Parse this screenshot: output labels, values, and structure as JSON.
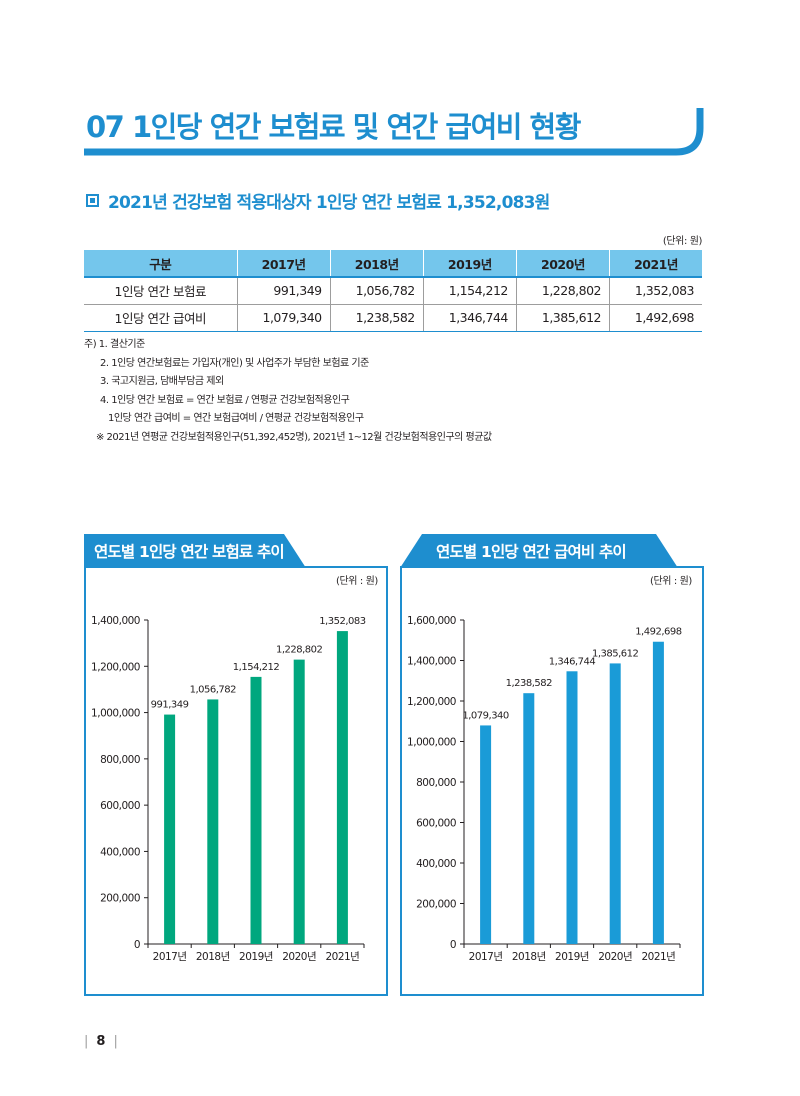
{
  "header": {
    "title": "07 1인당 연간 보험료 및 연간 급여비 현황",
    "accent_color": "#1e8ecf"
  },
  "section": {
    "icon": "square-bullet-icon",
    "title": "2021년 건강보험 적용대상자 1인당 연간 보험료 1,352,083원"
  },
  "table": {
    "unit": "(단위: 원)",
    "headers": [
      "구분",
      "2017년",
      "2018년",
      "2019년",
      "2020년",
      "2021년"
    ],
    "rows": [
      [
        "1인당 연간 보험료",
        "991,349",
        "1,056,782",
        "1,154,212",
        "1,228,802",
        "1,352,083"
      ],
      [
        "1인당 연간 급여비",
        "1,079,340",
        "1,238,582",
        "1,346,744",
        "1,385,612",
        "1,492,698"
      ]
    ]
  },
  "notes": [
    "주) 1. 결산기준",
    "2. 1인당 연간보험료는 가입자(개인) 및 사업주가 부담한 보험료 기준",
    "3. 국고지원금, 담배부담금 제외",
    "4. 1인당 연간 보험료 = 연간 보험료 / 연평균 건강보험적용인구",
    "1인당 연간 급여비 = 연간 보험급여비 / 연평균 건강보험적용인구",
    "※ 2021년 연평균 건강보험적용인구(51,392,452명), 2021년 1~12월 건강보험적용인구의 평균값"
  ],
  "chart_data": [
    {
      "type": "bar",
      "title": "연도별 1인당 연간 보험료 추이",
      "unit": "(단위 : 원)",
      "categories": [
        "2017년",
        "2018년",
        "2019년",
        "2020년",
        "2021년"
      ],
      "values": [
        991349,
        1056782,
        1154212,
        1228802,
        1352083
      ],
      "value_labels": [
        "991,349",
        "1,056,782",
        "1,154,212",
        "1,228,802",
        "1,352,083"
      ],
      "ylim": [
        0,
        1400000
      ],
      "yticks": [
        0,
        200000,
        400000,
        600000,
        800000,
        1000000,
        1200000,
        1400000
      ],
      "ytick_labels": [
        "0",
        "200,000",
        "400,000",
        "600,000",
        "800,000",
        "1,000,000",
        "1,200,000",
        "1,400,000"
      ],
      "bar_color": "#00a77e",
      "tab_color": "#1e8ecf",
      "xlabel": "",
      "ylabel": ""
    },
    {
      "type": "bar",
      "title": "연도별 1인당 연간 급여비 추이",
      "unit": "(단위 : 원)",
      "categories": [
        "2017년",
        "2018년",
        "2019년",
        "2020년",
        "2021년"
      ],
      "values": [
        1079340,
        1238582,
        1346744,
        1385612,
        1492698
      ],
      "value_labels": [
        "1,079,340",
        "1,238,582",
        "1,346,744",
        "1,385,612",
        "1,492,698"
      ],
      "ylim": [
        0,
        1600000
      ],
      "yticks": [
        0,
        200000,
        400000,
        600000,
        800000,
        1000000,
        1200000,
        1400000,
        1600000
      ],
      "ytick_labels": [
        "0",
        "200,000",
        "400,000",
        "600,000",
        "800,000",
        "1,000,000",
        "1,200,000",
        "1,400,000",
        "1,600,000"
      ],
      "bar_color": "#1a9bd7",
      "tab_color": "#1e8ecf",
      "xlabel": "",
      "ylabel": ""
    }
  ],
  "footer": {
    "page_number": "8",
    "separator": "|"
  }
}
